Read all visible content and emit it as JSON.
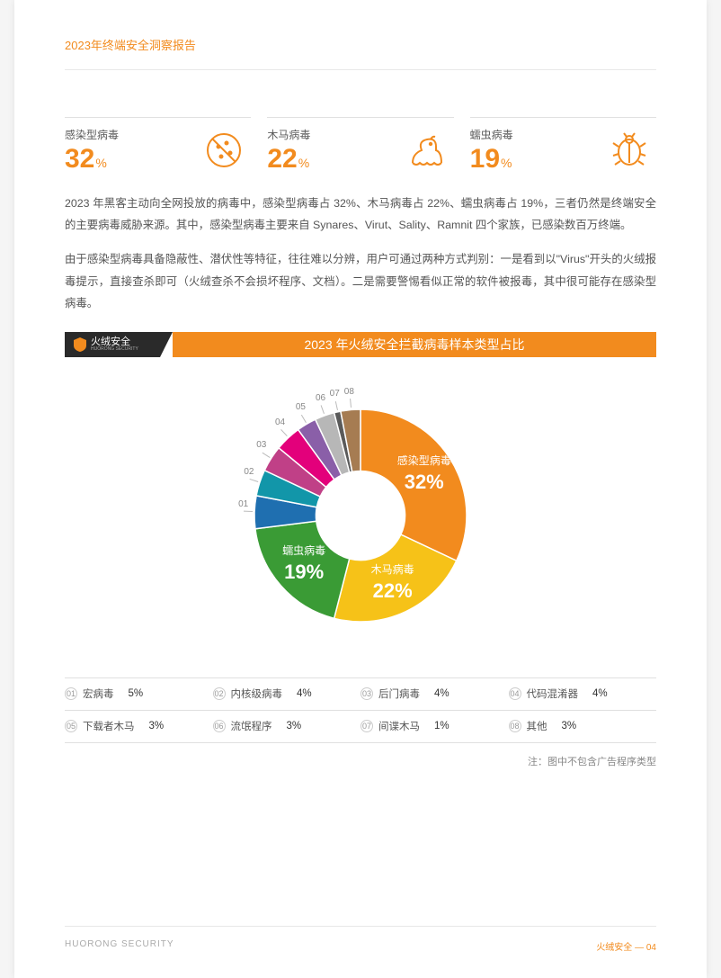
{
  "header": {
    "title": "2023年终端安全洞察报告"
  },
  "stats": [
    {
      "label": "感染型病毒",
      "value": "32",
      "unit": "%",
      "icon": "virus-icon"
    },
    {
      "label": "木马病毒",
      "value": "22",
      "unit": "%",
      "icon": "trojan-icon"
    },
    {
      "label": "蠕虫病毒",
      "value": "19",
      "unit": "%",
      "icon": "worm-icon"
    }
  ],
  "paragraphs": [
    "2023 年黑客主动向全网投放的病毒中，感染型病毒占 32%、木马病毒占 22%、蠕虫病毒占 19%，三者仍然是终端安全的主要病毒威胁来源。其中，感染型病毒主要来自 Synares、Virut、Sality、Ramnit 四个家族，已感染数百万终端。",
    "由于感染型病毒具备隐蔽性、潜伏性等特征，往往难以分辨，用户可通过两种方式判别：一是看到以\"Virus\"开头的火绒报毒提示，直接查杀即可（火绒查杀不会损坏程序、文档）。二是需要警惕看似正常的软件被报毒，其中很可能存在感染型病毒。"
  ],
  "chart": {
    "logo_text": "火绒安全",
    "logo_sub": "HUORONG SECURITY",
    "title": "2023 年火绒安全拦截病毒样本类型占比",
    "type": "donut",
    "inner_radius_ratio": 0.42,
    "background_color": "#ffffff",
    "slices": [
      {
        "name": "感染型病毒",
        "value": 32,
        "color": "#f28b1e",
        "show_label": true
      },
      {
        "name": "木马病毒",
        "value": 22,
        "color": "#f6c218",
        "show_label": true
      },
      {
        "name": "蠕虫病毒",
        "value": 19,
        "color": "#3a9b35",
        "show_label": true
      },
      {
        "name": "宏病毒",
        "value": 5,
        "color": "#1f6fb0",
        "leader": "01"
      },
      {
        "name": "内核级病毒",
        "value": 4,
        "color": "#1296a9",
        "leader": "02"
      },
      {
        "name": "后门病毒",
        "value": 4,
        "color": "#c04087",
        "leader": "03"
      },
      {
        "name": "代码混淆器",
        "value": 4,
        "color": "#e3007b",
        "leader": "04"
      },
      {
        "name": "下载者木马",
        "value": 3,
        "color": "#8a5fa8",
        "leader": "05"
      },
      {
        "name": "流氓程序",
        "value": 3,
        "color": "#b7b7b7",
        "leader": "06"
      },
      {
        "name": "间谍木马",
        "value": 1,
        "color": "#5a5a5a",
        "leader": "07"
      },
      {
        "name": "其他",
        "value": 3,
        "color": "#a67c52",
        "leader": "08"
      }
    ],
    "note": "注：图中不包含广告程序类型"
  },
  "legend": {
    "rows": [
      [
        {
          "num": "01",
          "name": "宏病毒",
          "val": "5%"
        },
        {
          "num": "02",
          "name": "内核级病毒",
          "val": "4%"
        },
        {
          "num": "03",
          "name": "后门病毒",
          "val": "4%"
        },
        {
          "num": "04",
          "name": "代码混淆器",
          "val": "4%"
        }
      ],
      [
        {
          "num": "05",
          "name": "下载者木马",
          "val": "3%"
        },
        {
          "num": "06",
          "name": "流氓程序",
          "val": "3%"
        },
        {
          "num": "07",
          "name": "间谍木马",
          "val": "1%"
        },
        {
          "num": "08",
          "name": "其他",
          "val": "3%"
        }
      ]
    ]
  },
  "footer": {
    "left": "HUORONG SECURITY",
    "right": "火绒安全 — 04"
  },
  "colors": {
    "accent": "#f28b1e",
    "text": "#555555",
    "border": "#e0e0e0"
  }
}
